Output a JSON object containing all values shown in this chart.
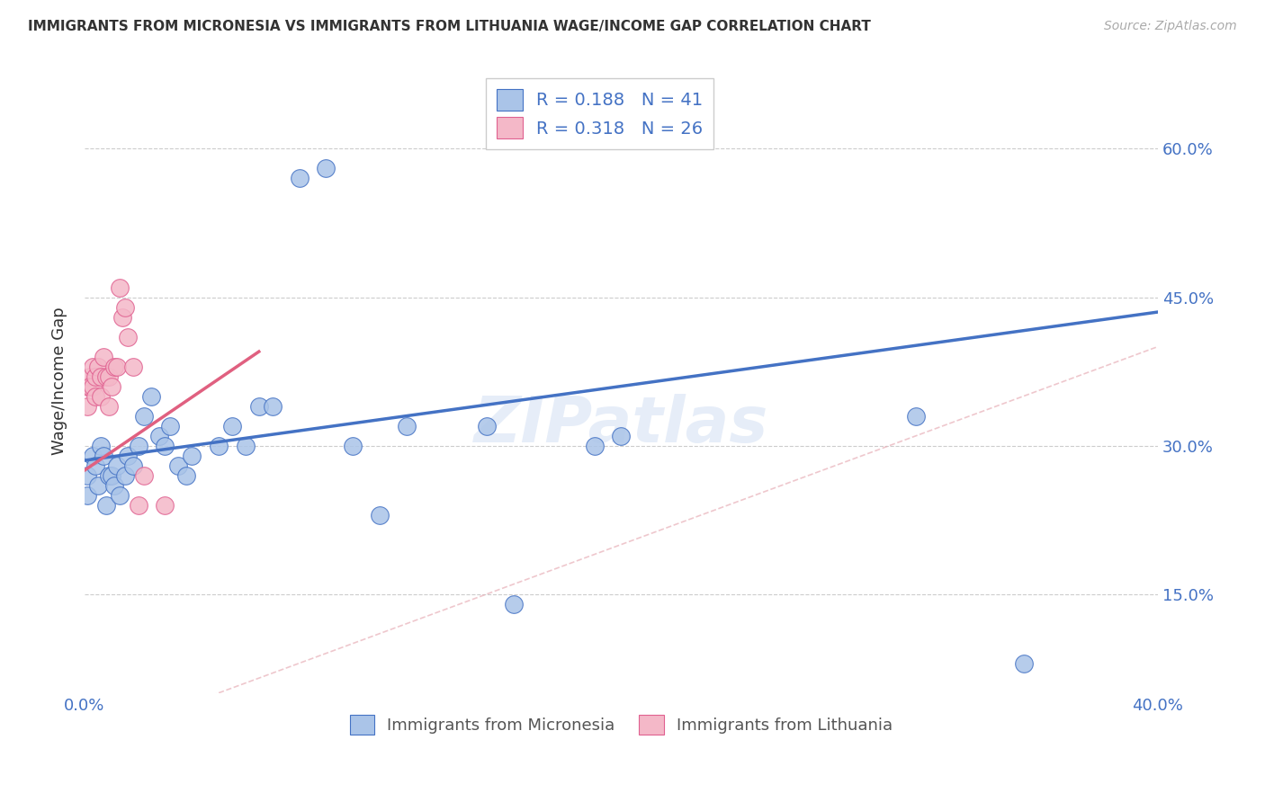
{
  "title": "IMMIGRANTS FROM MICRONESIA VS IMMIGRANTS FROM LITHUANIA WAGE/INCOME GAP CORRELATION CHART",
  "source": "Source: ZipAtlas.com",
  "ylabel": "Wage/Income Gap",
  "yticks": [
    "60.0%",
    "45.0%",
    "30.0%",
    "15.0%"
  ],
  "ytick_vals": [
    0.6,
    0.45,
    0.3,
    0.15
  ],
  "xlim": [
    0.0,
    0.4
  ],
  "ylim": [
    0.05,
    0.68
  ],
  "legend_r1": "R = 0.188",
  "legend_n1": "N = 41",
  "legend_r2": "R = 0.318",
  "legend_n2": "N = 26",
  "color_blue": "#aac4e8",
  "color_pink": "#f4b8c8",
  "color_blue_text": "#4472c4",
  "color_pink_text": "#e06090",
  "color_line_blue": "#4472c4",
  "color_line_pink": "#e06080",
  "color_diag": "#e8b0b8",
  "watermark": "ZIPatlas",
  "legend1_label": "Immigrants from Micronesia",
  "legend2_label": "Immigrants from Lithuania",
  "micro_x": [
    0.001,
    0.001,
    0.003,
    0.004,
    0.005,
    0.006,
    0.007,
    0.008,
    0.009,
    0.01,
    0.011,
    0.012,
    0.013,
    0.015,
    0.016,
    0.018,
    0.02,
    0.022,
    0.025,
    0.028,
    0.03,
    0.032,
    0.035,
    0.038,
    0.04,
    0.05,
    0.055,
    0.06,
    0.065,
    0.07,
    0.08,
    0.09,
    0.1,
    0.11,
    0.12,
    0.15,
    0.16,
    0.19,
    0.2,
    0.31,
    0.35
  ],
  "micro_y": [
    0.27,
    0.25,
    0.29,
    0.28,
    0.26,
    0.3,
    0.29,
    0.24,
    0.27,
    0.27,
    0.26,
    0.28,
    0.25,
    0.27,
    0.29,
    0.28,
    0.3,
    0.33,
    0.35,
    0.31,
    0.3,
    0.32,
    0.28,
    0.27,
    0.29,
    0.3,
    0.32,
    0.3,
    0.34,
    0.34,
    0.57,
    0.58,
    0.3,
    0.23,
    0.32,
    0.32,
    0.14,
    0.3,
    0.31,
    0.33,
    0.08
  ],
  "lith_x": [
    0.001,
    0.001,
    0.002,
    0.002,
    0.003,
    0.003,
    0.004,
    0.004,
    0.005,
    0.006,
    0.006,
    0.007,
    0.008,
    0.009,
    0.009,
    0.01,
    0.011,
    0.012,
    0.013,
    0.014,
    0.015,
    0.016,
    0.018,
    0.02,
    0.022,
    0.03
  ],
  "lith_y": [
    0.36,
    0.34,
    0.37,
    0.36,
    0.36,
    0.38,
    0.37,
    0.35,
    0.38,
    0.37,
    0.35,
    0.39,
    0.37,
    0.37,
    0.34,
    0.36,
    0.38,
    0.38,
    0.46,
    0.43,
    0.44,
    0.41,
    0.38,
    0.24,
    0.27,
    0.24
  ],
  "blue_line_x": [
    0.0,
    0.4
  ],
  "blue_line_y": [
    0.285,
    0.435
  ],
  "pink_line_x": [
    0.0,
    0.065
  ],
  "pink_line_y": [
    0.275,
    0.395
  ]
}
